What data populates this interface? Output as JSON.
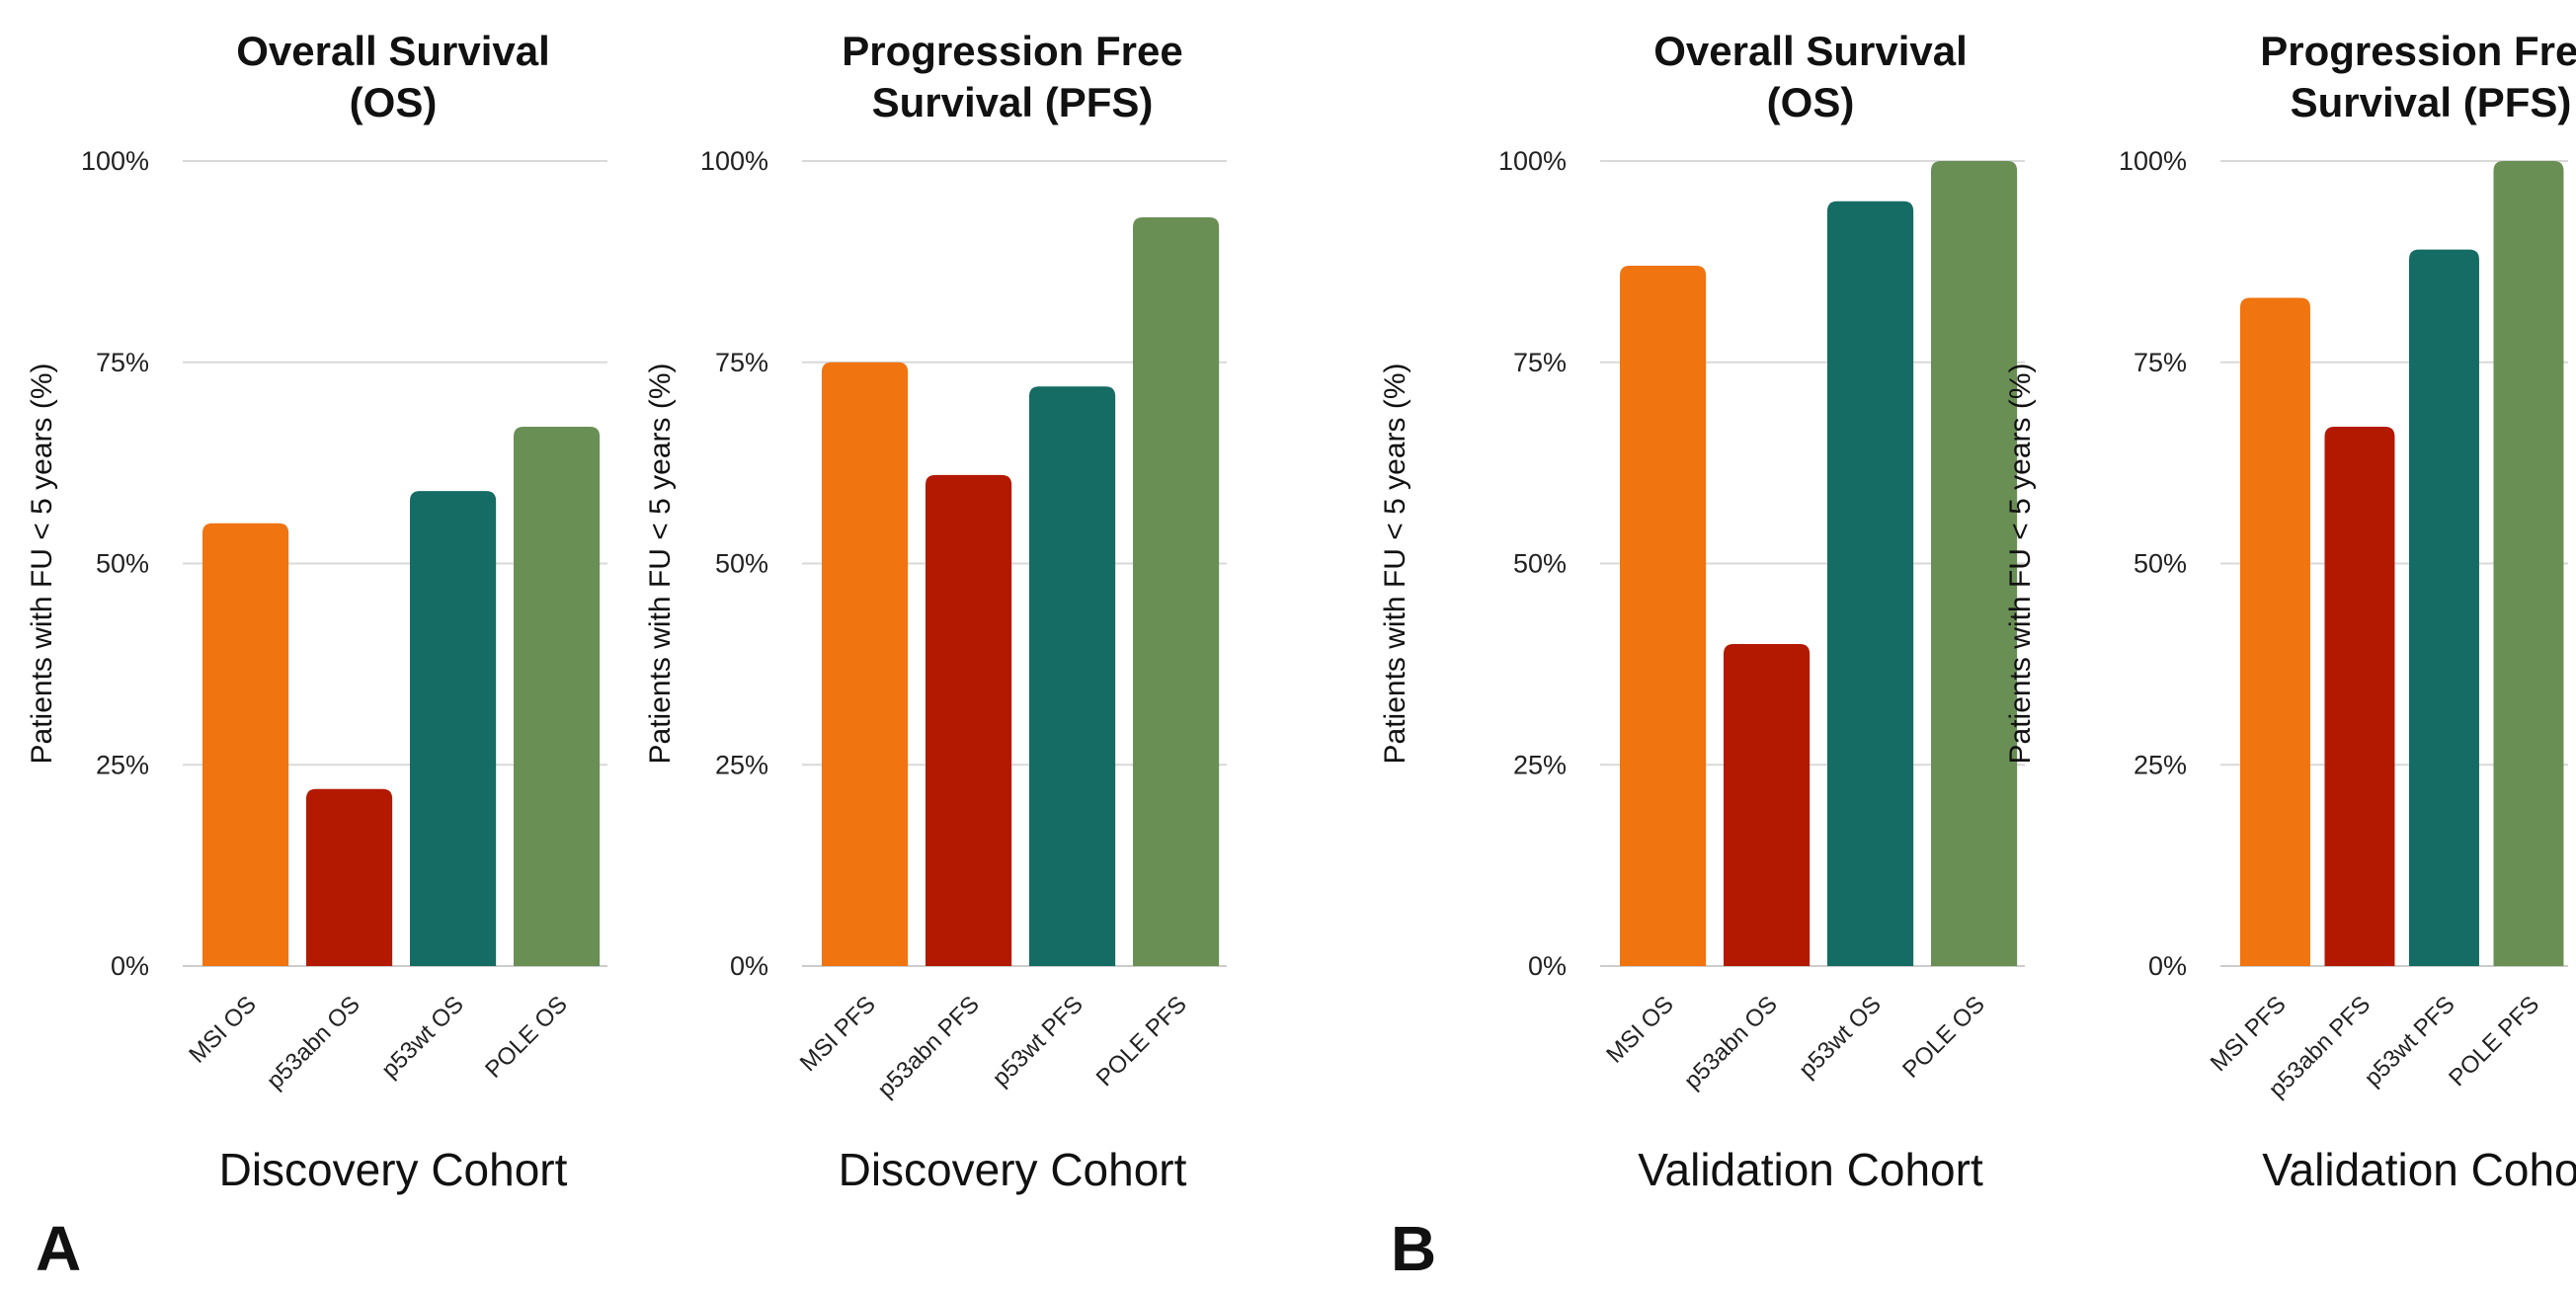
{
  "panel_labels": [
    "A",
    "B"
  ],
  "chart_data": [
    {
      "type": "bar",
      "title": [
        "Overall Survival",
        "(OS)"
      ],
      "xlabel": "Discovery Cohort",
      "ylabel": "Patients with FU < 5 years (%)",
      "ylim": [
        0,
        100
      ],
      "yticks": [
        "0%",
        "25%",
        "50%",
        "75%",
        "100%"
      ],
      "grid": true,
      "categories": [
        "MSI OS",
        "p53abn OS",
        "p53wt OS",
        "POLE OS"
      ],
      "values": [
        55,
        22,
        59,
        67
      ],
      "colors": [
        "#f07410",
        "#b31900",
        "#156c64",
        "#6a8f55"
      ]
    },
    {
      "type": "bar",
      "title": [
        "Progression Free",
        "Survival (PFS)"
      ],
      "xlabel": "Discovery Cohort",
      "ylabel": "Patients with FU < 5 years (%)",
      "ylim": [
        0,
        100
      ],
      "yticks": [
        "0%",
        "25%",
        "50%",
        "75%",
        "100%"
      ],
      "grid": true,
      "categories": [
        "MSI PFS",
        "p53abn PFS",
        "p53wt PFS",
        "POLE PFS"
      ],
      "values": [
        75,
        61,
        72,
        93
      ],
      "colors": [
        "#f07410",
        "#b31900",
        "#156c64",
        "#6a8f55"
      ]
    },
    {
      "type": "bar",
      "title": [
        "Overall Survival",
        "(OS)"
      ],
      "xlabel": "Validation Cohort",
      "ylabel": "Patients with FU < 5 years (%)",
      "ylim": [
        0,
        100
      ],
      "yticks": [
        "0%",
        "25%",
        "50%",
        "75%",
        "100%"
      ],
      "grid": true,
      "categories": [
        "MSI OS",
        "p53abn OS",
        "p53wt OS",
        "POLE OS"
      ],
      "values": [
        87,
        40,
        95,
        100
      ],
      "colors": [
        "#f07410",
        "#b31900",
        "#156c64",
        "#6a8f55"
      ]
    },
    {
      "type": "bar",
      "title": [
        "Progression Free",
        "Survival (PFS)"
      ],
      "xlabel": "Validation Cohort",
      "ylabel": "Patients with FU < 5 years (%)",
      "ylim": [
        0,
        100
      ],
      "yticks": [
        "0%",
        "25%",
        "50%",
        "75%",
        "100%"
      ],
      "grid": true,
      "categories": [
        "MSI PFS",
        "p53abn PFS",
        "p53wt PFS",
        "POLE PFS"
      ],
      "values": [
        83,
        67,
        89,
        100
      ],
      "colors": [
        "#f07410",
        "#b31900",
        "#156c64",
        "#6a8f55"
      ]
    }
  ]
}
